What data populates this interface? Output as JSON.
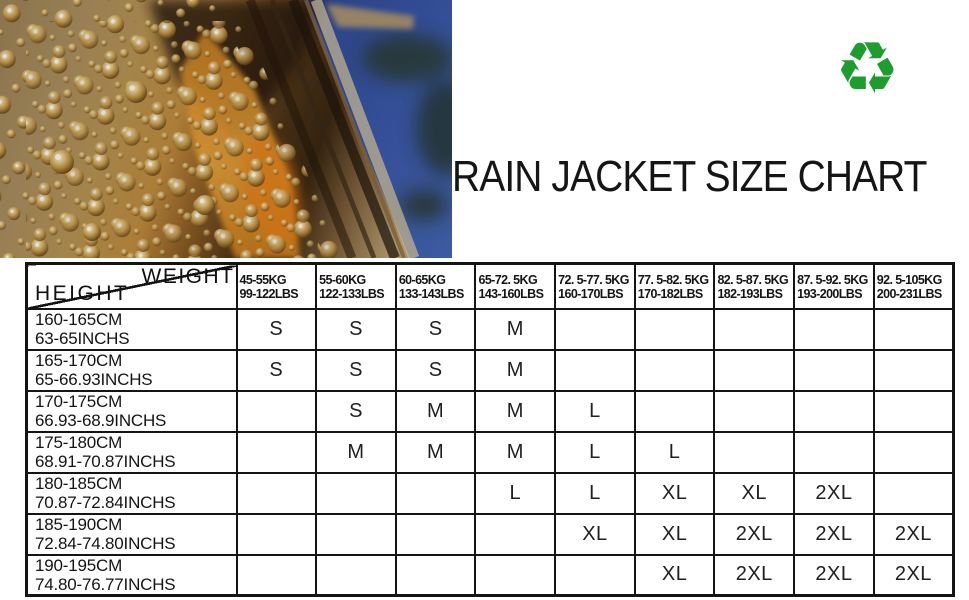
{
  "title_note": "product size-chart image",
  "recycle_icon": {
    "glyph": "♻",
    "color": "#1e9c2e"
  },
  "colors": {
    "table_border": "#141414",
    "sky_blue": "#3a58ab",
    "bark_amber": "#c08c3e",
    "recycle_green": "#1e9c2e"
  },
  "chart_data": {
    "type": "table",
    "title": "RAIN JACKET SIZE CHART",
    "corner": {
      "weight_label": "WEIGHT",
      "height_label": "HEIGHT"
    },
    "columns": [
      {
        "kg": "45-55KG",
        "lbs": "99-122LBS"
      },
      {
        "kg": "55-60KG",
        "lbs": "122-133LBS"
      },
      {
        "kg": "60-65KG",
        "lbs": "133-143LBS"
      },
      {
        "kg": "65-72. 5KG",
        "lbs": "143-160LBS"
      },
      {
        "kg": "72. 5-77. 5KG",
        "lbs": "160-170LBS"
      },
      {
        "kg": "77. 5-82. 5KG",
        "lbs": "170-182LBS"
      },
      {
        "kg": "82. 5-87. 5KG",
        "lbs": "182-193LBS"
      },
      {
        "kg": "87. 5-92. 5KG",
        "lbs": "193-200LBS"
      },
      {
        "kg": "92. 5-105KG",
        "lbs": "200-231LBS"
      }
    ],
    "rows": [
      {
        "cm": "160-165CM",
        "inches": "63-65INCHS",
        "sizes": [
          "S",
          "S",
          "S",
          "M",
          "",
          "",
          "",
          "",
          ""
        ]
      },
      {
        "cm": "165-170CM",
        "inches": "65-66.93INCHS",
        "sizes": [
          "S",
          "S",
          "S",
          "M",
          "",
          "",
          "",
          "",
          ""
        ]
      },
      {
        "cm": "170-175CM",
        "inches": "66.93-68.9INCHS",
        "sizes": [
          "",
          "S",
          "M",
          "M",
          "L",
          "",
          "",
          "",
          ""
        ]
      },
      {
        "cm": "175-180CM",
        "inches": "68.91-70.87INCHS",
        "sizes": [
          "",
          "M",
          "M",
          "M",
          "L",
          "L",
          "",
          "",
          ""
        ]
      },
      {
        "cm": "180-185CM",
        "inches": "70.87-72.84INCHS",
        "sizes": [
          "",
          "",
          "",
          "L",
          "L",
          "XL",
          "XL",
          "2XL",
          ""
        ]
      },
      {
        "cm": "185-190CM",
        "inches": "72.84-74.80INCHS",
        "sizes": [
          "",
          "",
          "",
          "",
          "XL",
          "XL",
          "2XL",
          "2XL",
          "2XL"
        ]
      },
      {
        "cm": "190-195CM",
        "inches": "74.80-76.77INCHS",
        "sizes": [
          "",
          "",
          "",
          "",
          "",
          "XL",
          "2XL",
          "2XL",
          "2XL"
        ]
      }
    ]
  }
}
